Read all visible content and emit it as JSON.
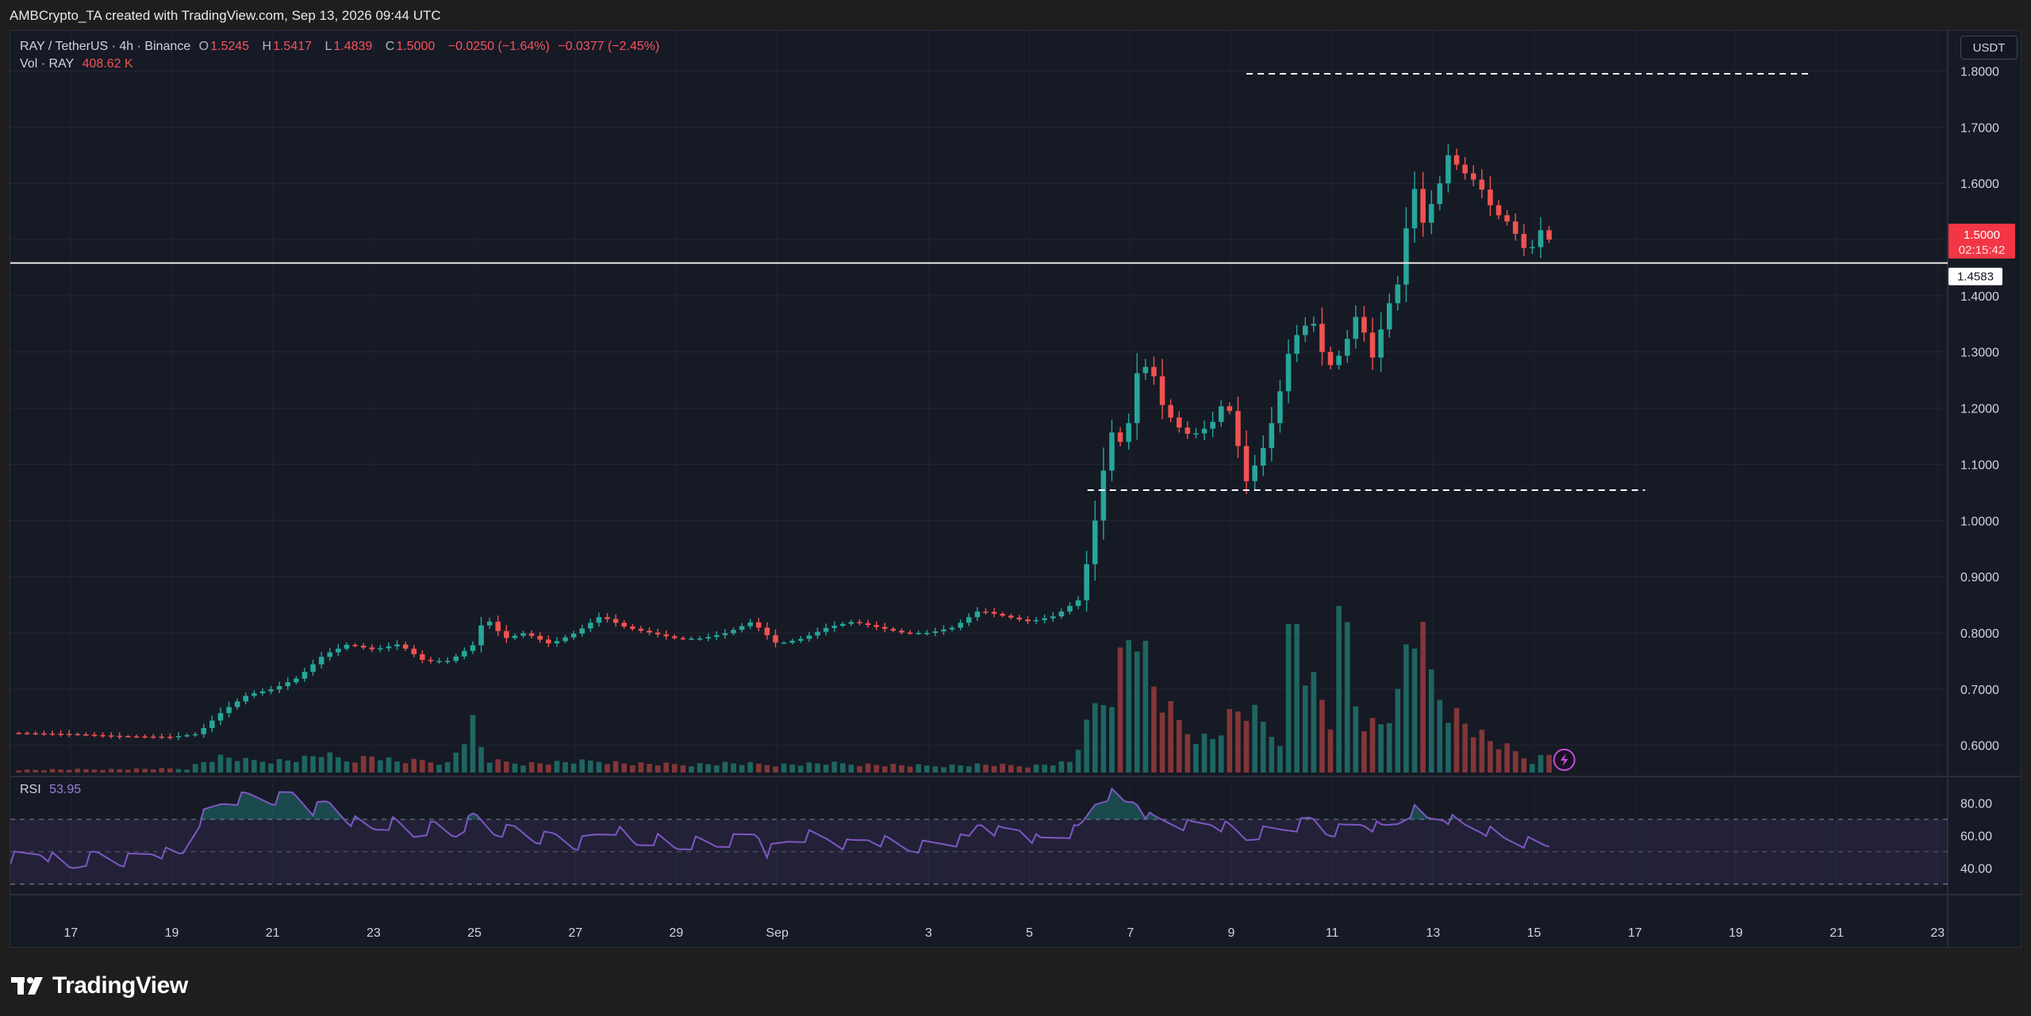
{
  "header": {
    "attribution": "AMBCrypto_TA created with TradingView.com, Sep 13, 2026 09:44 UTC"
  },
  "legend": {
    "symbol": "RAY / TetherUS · 4h · Binance",
    "o_label": "O",
    "o_value": "1.5245",
    "h_label": "H",
    "h_value": "1.5417",
    "l_label": "L",
    "l_value": "1.4839",
    "c_label": "C",
    "c_value": "1.5000",
    "change": "−0.0250 (−1.64%)",
    "change2": "−0.0377 (−2.45%)",
    "vol_label": "Vol · RAY",
    "vol_value": "408.62 K"
  },
  "currency_button": "USDT",
  "rsi": {
    "label": "RSI",
    "value": "53.95",
    "ticks": [
      "80.00",
      "60.00",
      "40.00"
    ]
  },
  "footer": {
    "brand": "TradingView"
  },
  "colors": {
    "up": "#26a69a",
    "down": "#ef5350",
    "rsi_line": "#7e57c2",
    "background": "#161a25"
  },
  "chart_data": {
    "type": "candlestick",
    "symbol": "RAY/USDT",
    "timeframe": "4h",
    "y_ticks": [
      "1.8000",
      "1.7000",
      "1.6000",
      "1.5000",
      "1.4000",
      "1.3000",
      "1.2000",
      "1.1000",
      "1.0000",
      "0.9000",
      "0.8000",
      "0.7000",
      "0.6000"
    ],
    "ylim": [
      0.56,
      1.86
    ],
    "x_ticks": [
      "17",
      "19",
      "21",
      "23",
      "25",
      "27",
      "29",
      "Sep",
      "3",
      "5",
      "7",
      "9",
      "11",
      "13",
      "15",
      "17",
      "19",
      "21",
      "23"
    ],
    "x_range_days": [
      15.8,
      54.2
    ],
    "last_price": "1.5000",
    "countdown": "02:15:42",
    "horizontal_line": {
      "value": 1.4583,
      "label": "1.4583"
    },
    "dashed_levels": [
      {
        "value": 1.795,
        "from_day": 40.3,
        "to_day": 51.5
      },
      {
        "value": 1.054,
        "from_day": 37.15,
        "to_day": 48.2
      }
    ],
    "price_path": [
      [
        15.8,
        0.622
      ],
      [
        17.0,
        0.62
      ],
      [
        18.0,
        0.616
      ],
      [
        19.0,
        0.615
      ],
      [
        19.5,
        0.62
      ],
      [
        20.0,
        0.66
      ],
      [
        20.5,
        0.69
      ],
      [
        21.0,
        0.7
      ],
      [
        21.5,
        0.72
      ],
      [
        22.0,
        0.76
      ],
      [
        22.5,
        0.78
      ],
      [
        23.0,
        0.77
      ],
      [
        23.5,
        0.78
      ],
      [
        24.0,
        0.75
      ],
      [
        24.5,
        0.75
      ],
      [
        25.0,
        0.78
      ],
      [
        25.2,
        0.83
      ],
      [
        25.6,
        0.79
      ],
      [
        26.0,
        0.8
      ],
      [
        26.5,
        0.78
      ],
      [
        27.0,
        0.8
      ],
      [
        27.5,
        0.83
      ],
      [
        28.0,
        0.81
      ],
      [
        28.5,
        0.8
      ],
      [
        29.0,
        0.79
      ],
      [
        29.5,
        0.79
      ],
      [
        30.0,
        0.8
      ],
      [
        30.5,
        0.82
      ],
      [
        31.0,
        0.78
      ],
      [
        31.5,
        0.79
      ],
      [
        32.0,
        0.81
      ],
      [
        32.5,
        0.82
      ],
      [
        33.0,
        0.81
      ],
      [
        33.5,
        0.8
      ],
      [
        34.0,
        0.8
      ],
      [
        34.5,
        0.81
      ],
      [
        35.0,
        0.84
      ],
      [
        35.5,
        0.83
      ],
      [
        36.0,
        0.82
      ],
      [
        36.5,
        0.83
      ],
      [
        37.0,
        0.86
      ],
      [
        37.3,
        1.0
      ],
      [
        37.6,
        1.16
      ],
      [
        37.9,
        1.13
      ],
      [
        38.1,
        1.26
      ],
      [
        38.4,
        1.28
      ],
      [
        38.6,
        1.21
      ],
      [
        38.9,
        1.17
      ],
      [
        39.2,
        1.15
      ],
      [
        39.6,
        1.17
      ],
      [
        39.9,
        1.22
      ],
      [
        40.3,
        1.07
      ],
      [
        40.6,
        1.12
      ],
      [
        40.9,
        1.2
      ],
      [
        41.1,
        1.29
      ],
      [
        41.3,
        1.33
      ],
      [
        41.6,
        1.36
      ],
      [
        41.9,
        1.27
      ],
      [
        42.2,
        1.3
      ],
      [
        42.5,
        1.37
      ],
      [
        42.8,
        1.29
      ],
      [
        43.1,
        1.38
      ],
      [
        43.4,
        1.44
      ],
      [
        43.55,
        1.62
      ],
      [
        43.8,
        1.53
      ],
      [
        44.1,
        1.59
      ],
      [
        44.3,
        1.65
      ],
      [
        44.6,
        1.62
      ],
      [
        44.9,
        1.6
      ],
      [
        45.2,
        1.55
      ],
      [
        45.5,
        1.53
      ],
      [
        45.9,
        1.47
      ],
      [
        46.1,
        1.52
      ],
      [
        46.3,
        1.5
      ]
    ],
    "volume_path": [
      [
        15.8,
        2
      ],
      [
        19.3,
        3
      ],
      [
        19.6,
        8
      ],
      [
        20.0,
        12
      ],
      [
        20.5,
        9
      ],
      [
        21.0,
        9
      ],
      [
        21.5,
        10
      ],
      [
        22.0,
        14
      ],
      [
        22.5,
        9
      ],
      [
        23.0,
        13
      ],
      [
        23.5,
        8
      ],
      [
        24.0,
        9
      ],
      [
        24.5,
        7
      ],
      [
        25.0,
        40
      ],
      [
        25.2,
        9
      ],
      [
        25.6,
        8
      ],
      [
        26.0,
        7
      ],
      [
        27.0,
        8
      ],
      [
        27.5,
        9
      ],
      [
        28.0,
        7
      ],
      [
        29.0,
        6
      ],
      [
        30.0,
        7
      ],
      [
        31.0,
        6
      ],
      [
        32.0,
        7
      ],
      [
        33.0,
        6
      ],
      [
        34.0,
        5
      ],
      [
        35.0,
        6
      ],
      [
        36.0,
        5
      ],
      [
        36.8,
        8
      ],
      [
        37.1,
        30
      ],
      [
        37.3,
        50
      ],
      [
        37.6,
        62
      ],
      [
        37.9,
        98
      ],
      [
        38.1,
        120
      ],
      [
        38.4,
        70
      ],
      [
        38.6,
        55
      ],
      [
        38.9,
        40
      ],
      [
        39.2,
        30
      ],
      [
        39.6,
        25
      ],
      [
        39.9,
        40
      ],
      [
        40.2,
        48
      ],
      [
        40.5,
        42
      ],
      [
        40.8,
        30
      ],
      [
        41.0,
        26
      ],
      [
        41.2,
        140
      ],
      [
        41.5,
        75
      ],
      [
        41.8,
        55
      ],
      [
        42.0,
        35
      ],
      [
        42.2,
        140
      ],
      [
        42.5,
        45
      ],
      [
        42.7,
        40
      ],
      [
        42.9,
        35
      ],
      [
        43.3,
        55
      ],
      [
        43.55,
        118
      ],
      [
        43.8,
        95
      ],
      [
        44.0,
        70
      ],
      [
        44.3,
        50
      ],
      [
        44.6,
        40
      ],
      [
        44.9,
        30
      ],
      [
        45.2,
        22
      ],
      [
        45.5,
        18
      ],
      [
        45.8,
        12
      ],
      [
        46.0,
        8
      ],
      [
        46.2,
        14
      ]
    ],
    "rsi_path": [
      [
        15.8,
        46
      ],
      [
        16.4,
        50
      ],
      [
        17.0,
        40
      ],
      [
        17.5,
        48
      ],
      [
        18.0,
        44
      ],
      [
        18.6,
        50
      ],
      [
        19.2,
        48
      ],
      [
        19.6,
        72
      ],
      [
        20.0,
        80
      ],
      [
        20.5,
        84
      ],
      [
        21.0,
        82
      ],
      [
        21.4,
        86
      ],
      [
        21.8,
        76
      ],
      [
        22.1,
        80
      ],
      [
        22.5,
        70
      ],
      [
        23.0,
        64
      ],
      [
        23.4,
        68
      ],
      [
        23.8,
        60
      ],
      [
        24.2,
        66
      ],
      [
        24.6,
        60
      ],
      [
        25.0,
        72
      ],
      [
        25.4,
        62
      ],
      [
        25.8,
        64
      ],
      [
        26.2,
        58
      ],
      [
        26.6,
        60
      ],
      [
        27.0,
        54
      ],
      [
        27.4,
        60
      ],
      [
        27.8,
        64
      ],
      [
        28.2,
        54
      ],
      [
        28.6,
        58
      ],
      [
        29.0,
        52
      ],
      [
        29.4,
        56
      ],
      [
        29.8,
        54
      ],
      [
        30.2,
        58
      ],
      [
        30.6,
        62
      ],
      [
        30.8,
        50
      ],
      [
        31.2,
        56
      ],
      [
        31.6,
        60
      ],
      [
        32.0,
        58
      ],
      [
        32.4,
        54
      ],
      [
        32.8,
        58
      ],
      [
        33.2,
        56
      ],
      [
        33.6,
        52
      ],
      [
        34.0,
        54
      ],
      [
        34.4,
        56
      ],
      [
        34.8,
        58
      ],
      [
        35.0,
        68
      ],
      [
        35.4,
        62
      ],
      [
        35.8,
        64
      ],
      [
        36.2,
        56
      ],
      [
        36.6,
        60
      ],
      [
        37.0,
        64
      ],
      [
        37.3,
        80
      ],
      [
        37.6,
        86
      ],
      [
        37.9,
        80
      ],
      [
        38.1,
        82
      ],
      [
        38.4,
        70
      ],
      [
        38.8,
        68
      ],
      [
        39.2,
        66
      ],
      [
        39.6,
        68
      ],
      [
        40.0,
        64
      ],
      [
        40.3,
        58
      ],
      [
        40.6,
        62
      ],
      [
        41.0,
        64
      ],
      [
        41.3,
        66
      ],
      [
        41.6,
        70
      ],
      [
        41.9,
        62
      ],
      [
        42.2,
        64
      ],
      [
        42.6,
        68
      ],
      [
        43.0,
        64
      ],
      [
        43.3,
        68
      ],
      [
        43.6,
        76
      ],
      [
        43.9,
        70
      ],
      [
        44.2,
        72
      ],
      [
        44.6,
        66
      ],
      [
        45.0,
        64
      ],
      [
        45.4,
        58
      ],
      [
        45.8,
        56
      ],
      [
        46.2,
        54
      ]
    ]
  }
}
